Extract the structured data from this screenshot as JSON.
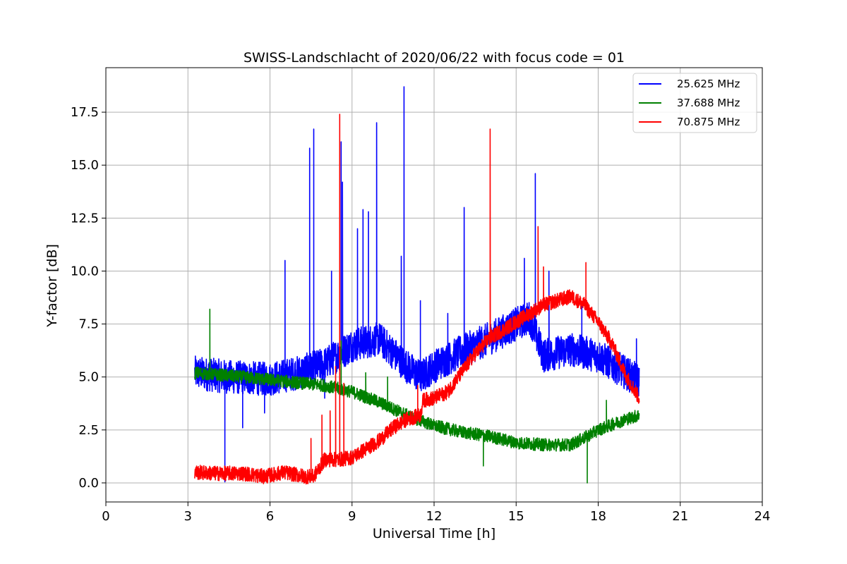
{
  "chart_data": {
    "type": "line",
    "title": "SWISS-Landschlacht of 2020/06/22 with focus code = 01",
    "xlabel": "Universal Time [h]",
    "ylabel": "Y-factor [dB]",
    "xlim": [
      0,
      24
    ],
    "ylim": [
      -0.9,
      19.6
    ],
    "xticks": [
      0,
      3,
      6,
      9,
      12,
      15,
      18,
      21,
      24
    ],
    "xtick_labels": [
      "0",
      "3",
      "6",
      "9",
      "12",
      "15",
      "18",
      "21",
      "24"
    ],
    "yticks": [
      0,
      2.5,
      5,
      7.5,
      10,
      12.5,
      15,
      17.5
    ],
    "ytick_labels": [
      "0.0",
      "2.5",
      "5.0",
      "7.5",
      "10.0",
      "12.5",
      "15.0",
      "17.5"
    ],
    "grid": true,
    "legend_position": "top-right",
    "series": [
      {
        "name": "25.625 MHz",
        "color": "#0000ff",
        "baseline": [
          [
            3.25,
            5.2
          ],
          [
            4.5,
            5.0
          ],
          [
            6.0,
            4.9
          ],
          [
            7.0,
            5.2
          ],
          [
            8.0,
            5.6
          ],
          [
            9.0,
            6.5
          ],
          [
            10.0,
            6.8
          ],
          [
            11.0,
            5.5
          ],
          [
            11.5,
            5.0
          ],
          [
            12.0,
            5.5
          ],
          [
            13.0,
            6.2
          ],
          [
            14.0,
            6.8
          ],
          [
            15.0,
            7.5
          ],
          [
            15.5,
            7.8
          ],
          [
            16.0,
            6.0
          ],
          [
            17.0,
            6.3
          ],
          [
            18.0,
            6.0
          ],
          [
            19.0,
            5.2
          ],
          [
            19.5,
            4.8
          ]
        ],
        "noise": 0.8,
        "spikes": [
          [
            4.35,
            0.05
          ],
          [
            5.0,
            2.6
          ],
          [
            5.8,
            3.3
          ],
          [
            6.55,
            10.5
          ],
          [
            7.45,
            15.8
          ],
          [
            7.6,
            16.7
          ],
          [
            8.0,
            4.0
          ],
          [
            8.25,
            10.0
          ],
          [
            8.6,
            16.1
          ],
          [
            8.65,
            14.2
          ],
          [
            9.2,
            12.0
          ],
          [
            9.4,
            12.9
          ],
          [
            9.6,
            12.8
          ],
          [
            9.9,
            17.0
          ],
          [
            10.8,
            10.7
          ],
          [
            10.9,
            18.7
          ],
          [
            11.5,
            8.6
          ],
          [
            12.5,
            8.0
          ],
          [
            13.1,
            13.0
          ],
          [
            15.3,
            10.6
          ],
          [
            15.7,
            14.6
          ],
          [
            16.2,
            10.0
          ],
          [
            17.4,
            8.5
          ],
          [
            19.4,
            6.8
          ]
        ]
      },
      {
        "name": "37.688 MHz",
        "color": "#008000",
        "baseline": [
          [
            3.25,
            5.2
          ],
          [
            5.0,
            5.0
          ],
          [
            6.5,
            4.8
          ],
          [
            8.0,
            4.6
          ],
          [
            9.0,
            4.3
          ],
          [
            10.0,
            3.8
          ],
          [
            11.0,
            3.2
          ],
          [
            12.0,
            2.7
          ],
          [
            13.0,
            2.4
          ],
          [
            14.0,
            2.2
          ],
          [
            15.0,
            1.9
          ],
          [
            16.0,
            1.8
          ],
          [
            17.0,
            1.8
          ],
          [
            17.6,
            2.2
          ],
          [
            18.0,
            2.5
          ],
          [
            19.0,
            3.0
          ],
          [
            19.5,
            3.2
          ]
        ],
        "noise": 0.3,
        "spikes": [
          [
            3.8,
            8.2
          ],
          [
            8.6,
            6.7
          ],
          [
            9.5,
            5.2
          ],
          [
            10.3,
            5.0
          ],
          [
            13.8,
            0.8
          ],
          [
            17.6,
            0.0
          ],
          [
            18.3,
            3.9
          ]
        ]
      },
      {
        "name": "70.875 MHz",
        "color": "#ff0000",
        "baseline": [
          [
            3.25,
            0.5
          ],
          [
            4.0,
            0.45
          ],
          [
            5.0,
            0.45
          ],
          [
            5.8,
            0.3
          ],
          [
            6.5,
            0.5
          ],
          [
            7.3,
            0.3
          ],
          [
            7.6,
            0.3
          ],
          [
            8.0,
            1.1
          ],
          [
            8.5,
            1.1
          ],
          [
            9.0,
            1.2
          ],
          [
            9.5,
            1.6
          ],
          [
            10.0,
            2.0
          ],
          [
            10.5,
            2.6
          ],
          [
            11.0,
            3.0
          ],
          [
            11.5,
            3.2
          ],
          [
            11.6,
            3.9
          ],
          [
            12.0,
            4.0
          ],
          [
            12.5,
            4.3
          ],
          [
            13.0,
            5.2
          ],
          [
            13.5,
            6.1
          ],
          [
            14.0,
            6.8
          ],
          [
            15.0,
            7.6
          ],
          [
            15.5,
            8.0
          ],
          [
            16.0,
            8.4
          ],
          [
            16.5,
            8.6
          ],
          [
            17.0,
            8.8
          ],
          [
            17.5,
            8.4
          ],
          [
            18.0,
            7.6
          ],
          [
            18.5,
            6.6
          ],
          [
            19.0,
            5.1
          ],
          [
            19.5,
            4.0
          ]
        ],
        "noise": 0.35,
        "spikes": [
          [
            7.5,
            2.1
          ],
          [
            7.9,
            3.2
          ],
          [
            8.2,
            3.4
          ],
          [
            8.4,
            5.5
          ],
          [
            8.55,
            17.4
          ],
          [
            8.7,
            4.7
          ],
          [
            11.4,
            4.6
          ],
          [
            14.05,
            16.7
          ],
          [
            15.8,
            12.1
          ],
          [
            16.0,
            10.2
          ],
          [
            17.55,
            10.4
          ]
        ]
      }
    ]
  }
}
